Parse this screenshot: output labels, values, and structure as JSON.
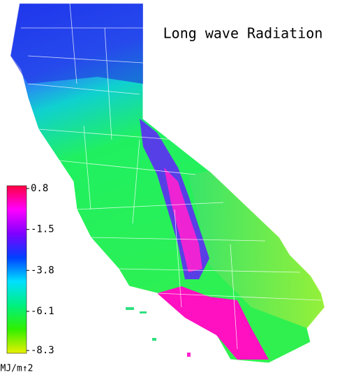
{
  "title": "Long wave Radiation",
  "colorbar": {
    "range": [
      -8.3,
      0.8
    ],
    "ticks": [
      0.8,
      -1.5,
      -3.8,
      -6.1,
      -8.3
    ],
    "unit": "MJ/m↑2",
    "colors": [
      "#e8f000",
      "#30f000",
      "#00f080",
      "#00e0ff",
      "#0040ff",
      "#8000ff",
      "#ff00ff",
      "#ff0040"
    ]
  }
}
